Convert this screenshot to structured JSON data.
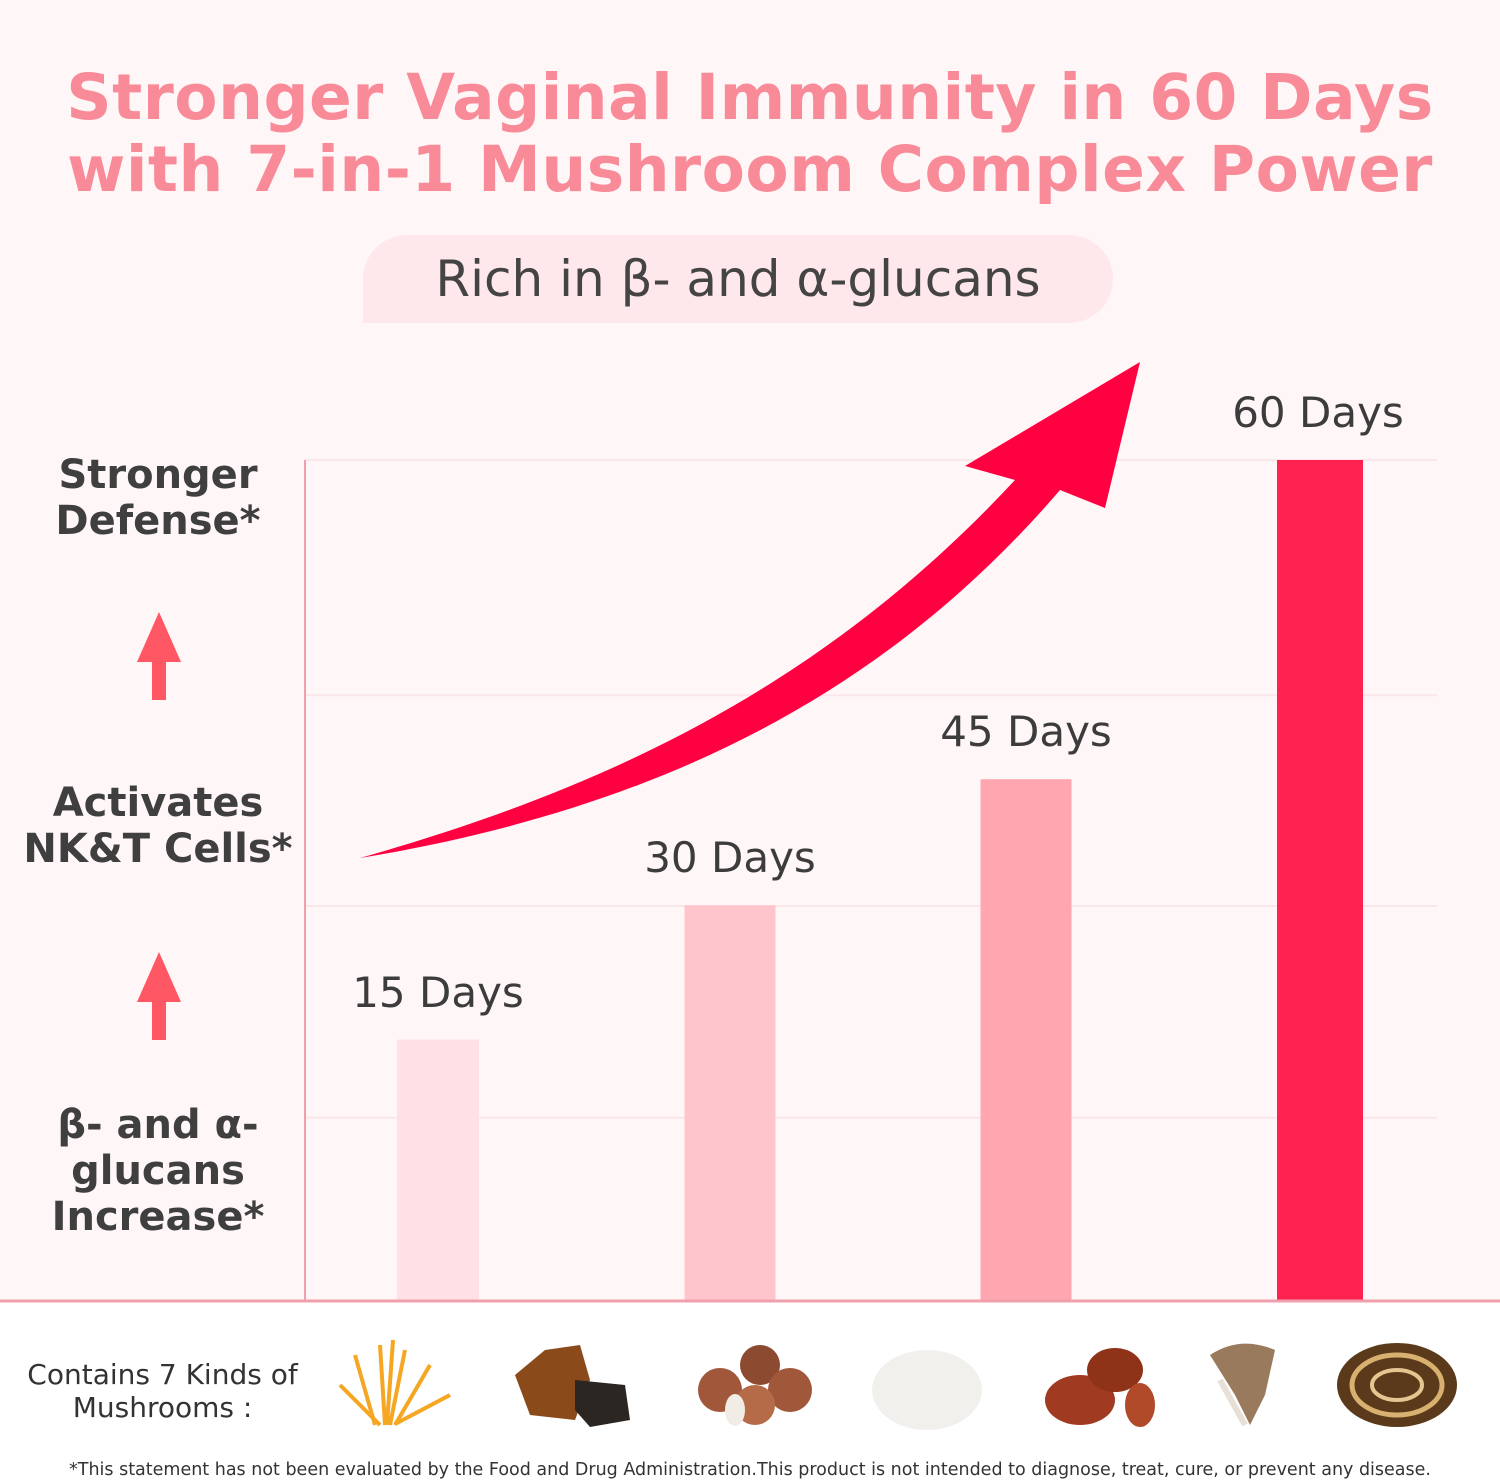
{
  "title_line1": "Stronger Vaginal Immunity in 60 Days",
  "title_line2": "with 7-in-1 Mushroom Complex Power",
  "subtitle": "Rich in β- and α-glucans",
  "y_labels": {
    "top": [
      "Stronger",
      "Defense*"
    ],
    "middle": [
      "Activates",
      "NK&T Cells*"
    ],
    "bottom": [
      "β- and α-",
      "glucans",
      "Increase*"
    ]
  },
  "colors": {
    "title": "#f98a98",
    "arrow": "#ff0040",
    "axis": "#f0a0ad"
  },
  "chart_data": {
    "type": "bar",
    "categories": [
      "15 Days",
      "30 Days",
      "45 Days",
      "60 Days"
    ],
    "values": [
      31,
      47,
      62,
      100
    ],
    "value_unit": "relative level (percent of 60-day level, estimated)",
    "bar_colors": [
      "#ffe0e4",
      "#ffc5cd",
      "#ffa6b1",
      "#ff2150"
    ],
    "title": "",
    "xlabel": "",
    "ylabel": "",
    "ylim": [
      0,
      100
    ],
    "grid": true,
    "trend_arrow": true
  },
  "footer": {
    "contains_line1": "Contains 7 Kinds of",
    "contains_line2": "Mushrooms :",
    "mushrooms": [
      "cordyceps",
      "chaga",
      "shiitake",
      "lions-mane",
      "reishi",
      "maitake",
      "turkey-tail"
    ],
    "disclaimer": "*This statement has not been evaluated by the Food and Drug Administration.This product is not intended to diagnose, treat, cure, or prevent any disease."
  }
}
